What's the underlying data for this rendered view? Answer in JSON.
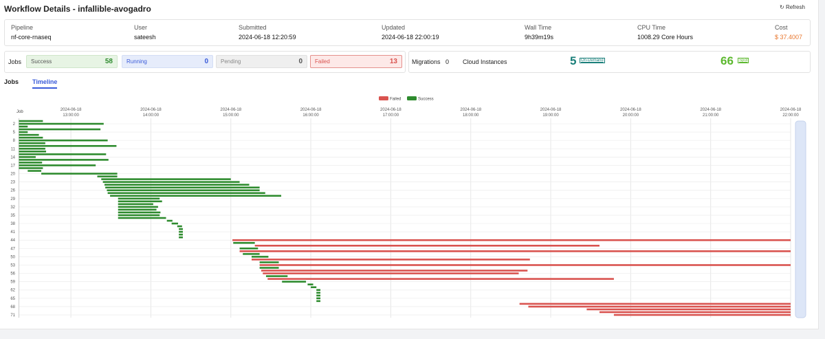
{
  "header": {
    "title": "Workflow Details - infallible-avogadro",
    "refresh": "Refresh"
  },
  "info": [
    {
      "label": "Pipeline",
      "value": "nf-core-rnaseq"
    },
    {
      "label": "User",
      "value": "sateesh"
    },
    {
      "label": "Submitted",
      "value": "2024-06-18 12:20:59"
    },
    {
      "label": "Updated",
      "value": "2024-06-18 22:00:19"
    },
    {
      "label": "Wall Time",
      "value": "9h39m19s"
    },
    {
      "label": "CPU Time",
      "value": "1008.29 Core Hours"
    },
    {
      "label": "Cost",
      "value": "$ 37.4007"
    }
  ],
  "jobs": {
    "label": "Jobs",
    "counts": [
      {
        "name": "Success",
        "value": 58
      },
      {
        "name": "Running",
        "value": 0
      },
      {
        "name": "Pending",
        "value": 0
      },
      {
        "name": "Failed",
        "value": 13
      }
    ]
  },
  "instances": {
    "migrations_label": "Migrations",
    "migrations": 0,
    "cloud_label": "Cloud Instances",
    "on_demand": 5,
    "on_demand_label": "On-Demand",
    "spot": 66,
    "spot_label": "Spot"
  },
  "tabs": [
    "Jobs",
    "Timeline"
  ],
  "chart_data": {
    "type": "gantt",
    "ylabel": "Job",
    "xlim": [
      12.35,
      22.0
    ],
    "xticks": [
      {
        "value": 13,
        "label": [
          "2024-06-18",
          "13:00:00"
        ]
      },
      {
        "value": 14,
        "label": [
          "2024-06-18",
          "14:00:00"
        ]
      },
      {
        "value": 15,
        "label": [
          "2024-06-18",
          "15:00:00"
        ]
      },
      {
        "value": 16,
        "label": [
          "2024-06-18",
          "16:00:00"
        ]
      },
      {
        "value": 17,
        "label": [
          "2024-06-18",
          "17:00:00"
        ]
      },
      {
        "value": 18,
        "label": [
          "2024-06-18",
          "18:00:00"
        ]
      },
      {
        "value": 19,
        "label": [
          "2024-06-18",
          "19:00:00"
        ]
      },
      {
        "value": 20,
        "label": [
          "2024-06-18",
          "20:00:00"
        ]
      },
      {
        "value": 21,
        "label": [
          "2024-06-18",
          "21:00:00"
        ]
      },
      {
        "value": 22,
        "label": [
          "2024-06-18",
          "22:00:00"
        ]
      }
    ],
    "ylim": [
      0.5,
      71.5
    ],
    "yticks": [
      2,
      5,
      8,
      11,
      14,
      17,
      20,
      23,
      26,
      29,
      32,
      35,
      38,
      41,
      44,
      47,
      50,
      53,
      56,
      59,
      62,
      65,
      68,
      71
    ],
    "series": [
      {
        "name": "Failed",
        "color": "#d9534f",
        "rows": [
          44,
          46,
          48,
          51,
          53,
          55,
          56,
          58,
          67,
          68,
          69,
          70,
          71
        ],
        "start": [
          15.02,
          15.3,
          15.11,
          15.26,
          15.36,
          15.38,
          15.4,
          15.46,
          18.61,
          18.72,
          19.45,
          19.61,
          19.79
        ],
        "end": [
          22.0,
          19.61,
          22.0,
          18.74,
          22.0,
          18.71,
          18.6,
          19.79,
          22.0,
          22.0,
          22.0,
          22.0,
          22.0
        ]
      },
      {
        "name": "Success",
        "color": "#2e8b2e",
        "rows": [
          1,
          2,
          3,
          4,
          5,
          6,
          7,
          8,
          9,
          10,
          11,
          12,
          13,
          14,
          15,
          16,
          17,
          18,
          19,
          20,
          21,
          22,
          23,
          24,
          25,
          26,
          27,
          28,
          29,
          30,
          31,
          32,
          33,
          34,
          35,
          36,
          37,
          38,
          39,
          40,
          41,
          42,
          43,
          45,
          47,
          49,
          50,
          52,
          54,
          57,
          59,
          60,
          61,
          62,
          63,
          64,
          65,
          66
        ],
        "start": [
          12.35,
          12.35,
          12.35,
          12.35,
          12.35,
          12.35,
          12.35,
          12.35,
          12.35,
          12.35,
          12.35,
          12.35,
          12.35,
          12.35,
          12.35,
          12.35,
          12.35,
          12.35,
          12.46,
          12.63,
          13.33,
          13.38,
          13.4,
          13.42,
          13.43,
          13.45,
          13.46,
          13.49,
          13.59,
          13.59,
          13.59,
          13.59,
          13.59,
          13.59,
          13.59,
          13.59,
          14.2,
          14.26,
          14.33,
          14.35,
          14.35,
          14.35,
          14.35,
          15.03,
          15.11,
          15.15,
          15.26,
          15.36,
          15.36,
          15.44,
          15.64,
          15.96,
          16.0,
          16.07,
          16.07,
          16.07,
          16.07,
          16.07
        ],
        "end": [
          12.65,
          13.41,
          12.46,
          13.37,
          12.46,
          12.6,
          12.65,
          13.46,
          12.68,
          13.57,
          12.68,
          12.69,
          13.44,
          12.56,
          13.47,
          12.64,
          13.31,
          12.65,
          12.63,
          13.58,
          13.58,
          15.0,
          15.11,
          15.23,
          15.36,
          15.36,
          15.43,
          15.63,
          14.11,
          14.14,
          14.03,
          14.09,
          14.07,
          14.12,
          14.11,
          14.19,
          14.27,
          14.34,
          14.39,
          14.4,
          14.4,
          14.4,
          14.4,
          15.3,
          15.34,
          15.36,
          15.47,
          15.6,
          15.6,
          15.71,
          15.94,
          16.03,
          16.07,
          16.12,
          16.12,
          16.12,
          16.12,
          16.12
        ]
      }
    ]
  }
}
